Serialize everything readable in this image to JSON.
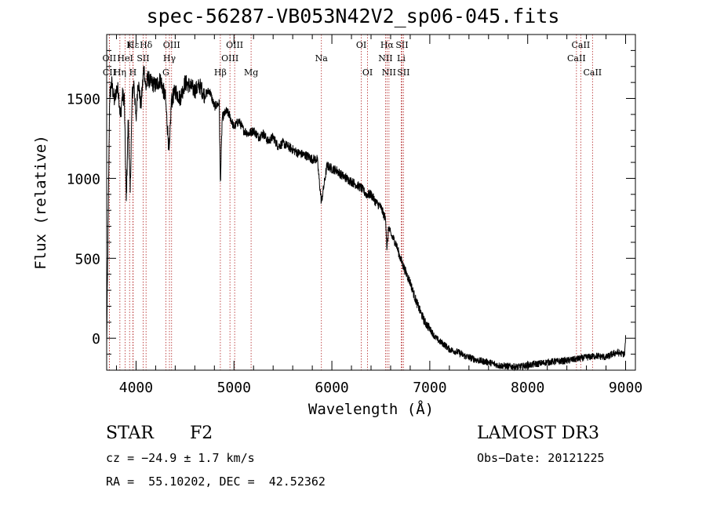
{
  "chart_data": {
    "type": "line",
    "title": "spec-56287-VB053N42V2_sp06-045.fits",
    "xlabel": "Wavelength (Å)",
    "ylabel": "Flux (relative)",
    "xlim": [
      3700,
      9100
    ],
    "ylim": [
      -200,
      1900
    ],
    "xticks": [
      4000,
      5000,
      6000,
      7000,
      8000,
      9000
    ],
    "xtick_labels": [
      "4000",
      "5000",
      "6000",
      "7000",
      "8000",
      "9000"
    ],
    "yticks": [
      0,
      500,
      1000,
      1500
    ],
    "ytick_labels": [
      "0",
      "500",
      "1000",
      "1500"
    ],
    "series": [
      {
        "name": "flux",
        "x": [
          3700,
          3715,
          3730,
          3750,
          3780,
          3800,
          3820,
          3840,
          3860,
          3880,
          3900,
          3920,
          3940,
          3960,
          3980,
          4000,
          4020,
          4050,
          4080,
          4100,
          4120,
          4150,
          4200,
          4250,
          4300,
          4340,
          4360,
          4400,
          4450,
          4500,
          4550,
          4600,
          4650,
          4700,
          4750,
          4800,
          4850,
          4861,
          4880,
          4920,
          4950,
          5000,
          5050,
          5100,
          5150,
          5200,
          5250,
          5300,
          5350,
          5400,
          5450,
          5500,
          5550,
          5600,
          5650,
          5700,
          5750,
          5800,
          5850,
          5893,
          5950,
          6000,
          6050,
          6100,
          6150,
          6200,
          6250,
          6300,
          6350,
          6400,
          6450,
          6500,
          6550,
          6563,
          6580,
          6600,
          6650,
          6700,
          6750,
          6800,
          6850,
          6900,
          6950,
          7000,
          7050,
          7100,
          7150,
          7200,
          7250,
          7300,
          7350,
          7400,
          7450,
          7500,
          7600,
          7700,
          7800,
          7900,
          8000,
          8100,
          8200,
          8300,
          8400,
          8500,
          8600,
          8700,
          8800,
          8900,
          8990,
          9000
        ],
        "y": [
          -50,
          700,
          1500,
          1600,
          1480,
          1560,
          1550,
          1380,
          1520,
          1500,
          850,
          1380,
          900,
          1520,
          1600,
          1350,
          1620,
          1450,
          1700,
          1560,
          1630,
          1600,
          1580,
          1620,
          1500,
          1150,
          1480,
          1550,
          1500,
          1600,
          1580,
          1550,
          1580,
          1520,
          1550,
          1450,
          1470,
          950,
          1380,
          1420,
          1400,
          1320,
          1360,
          1300,
          1280,
          1300,
          1260,
          1280,
          1230,
          1260,
          1200,
          1220,
          1200,
          1180,
          1160,
          1150,
          1140,
          1120,
          1120,
          850,
          1080,
          1060,
          1050,
          1020,
          1000,
          980,
          960,
          940,
          900,
          900,
          850,
          820,
          740,
          550,
          700,
          650,
          600,
          500,
          420,
          350,
          250,
          170,
          100,
          60,
          10,
          -20,
          -40,
          -70,
          -80,
          -90,
          -110,
          -120,
          -130,
          -140,
          -150,
          -170,
          -175,
          -180,
          -170,
          -160,
          -150,
          -145,
          -140,
          -130,
          -120,
          -110,
          -120,
          -90,
          -100,
          0
        ]
      }
    ],
    "lines": [
      {
        "label": "Hε",
        "x": 3970,
        "row": 1
      },
      {
        "label": "OII",
        "x": 3727,
        "row": 2
      },
      {
        "label": "CII",
        "x": 3727,
        "row": 3
      },
      {
        "label": "K",
        "x": 3934,
        "row": 1
      },
      {
        "label": "HeI",
        "x": 3889,
        "row": 2
      },
      {
        "label": "Hη",
        "x": 3835,
        "row": 3
      },
      {
        "label": "Hδ",
        "x": 4102,
        "row": 1
      },
      {
        "label": "SII",
        "x": 4072,
        "row": 2
      },
      {
        "label": "H",
        "x": 3968,
        "row": 3
      },
      {
        "label": "OIII",
        "x": 4363,
        "row": 1
      },
      {
        "label": "Hγ",
        "x": 4341,
        "row": 2
      },
      {
        "label": "G",
        "x": 4304,
        "row": 3
      },
      {
        "label": "OIII",
        "x": 5007,
        "row": 1
      },
      {
        "label": "OIII",
        "x": 4959,
        "row": 2
      },
      {
        "label": "Hβ",
        "x": 4861,
        "row": 3
      },
      {
        "label": "Mg",
        "x": 5175,
        "row": 3
      },
      {
        "label": "Na",
        "x": 5893,
        "row": 2
      },
      {
        "label": "OI",
        "x": 6300,
        "row": 1
      },
      {
        "label": "OI",
        "x": 6364,
        "row": 3
      },
      {
        "label": "Hα",
        "x": 6563,
        "row": 1
      },
      {
        "label": "NII",
        "x": 6548,
        "row": 2
      },
      {
        "label": "NII",
        "x": 6583,
        "row": 3
      },
      {
        "label": "SII",
        "x": 6716,
        "row": 1
      },
      {
        "label": "Li",
        "x": 6708,
        "row": 2
      },
      {
        "label": "SII",
        "x": 6731,
        "row": 3
      },
      {
        "label": "CaII",
        "x": 8542,
        "row": 1
      },
      {
        "label": "CaII",
        "x": 8498,
        "row": 2
      },
      {
        "label": "CaII",
        "x": 8662,
        "row": 3
      }
    ]
  },
  "info": {
    "obj_class": "STAR",
    "subclass": "F2",
    "cz": "cz = −24.9 ± 1.7 km/s",
    "coords": "RA =  55.10202, DEC =  42.52362",
    "survey": "LAMOST DR3",
    "obs_date": "Obs−Date: 20121225"
  }
}
